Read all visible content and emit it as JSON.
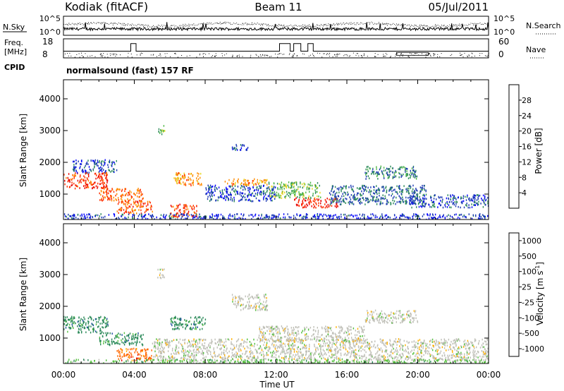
{
  "header": {
    "station": "Kodiak (fitACF)",
    "beam": "Beam 11",
    "date": "05/Jul/2011"
  },
  "noise_panel": {
    "left_label": "N.Sky",
    "right_label": "N.Search",
    "left_ticks": [
      "10^5",
      "10^0"
    ],
    "right_ticks": [
      "10^5",
      "10^0"
    ]
  },
  "freq_panel": {
    "left_label_1": "Freq.",
    "left_label_2": "[MHz]",
    "right_label": "Nave",
    "left_ticks": [
      "18",
      "8"
    ],
    "right_ticks": [
      "60",
      "0"
    ],
    "freq_range": [
      8,
      18
    ],
    "nave_range": [
      0,
      60
    ],
    "freq_base": 11.5,
    "freq_steps": [
      {
        "start": 3.8,
        "end": 4.1,
        "value": 15.5
      },
      {
        "start": 12.2,
        "end": 12.8,
        "value": 15.5
      },
      {
        "start": 13.0,
        "end": 13.4,
        "value": 15.5
      },
      {
        "start": 13.8,
        "end": 14.1,
        "value": 15.5
      }
    ],
    "nave_box": {
      "start": 18.8,
      "end": 20.6,
      "value": 17
    }
  },
  "cpid": {
    "label": "CPID",
    "text": "normalsound (fast) 157 RF"
  },
  "chart_data": [
    {
      "type": "heatmap",
      "name": "power",
      "ylabel": "Slant Range [km]",
      "xlabel": "Time UT",
      "x_ticks": [
        "00:00",
        "04:00",
        "08:00",
        "12:00",
        "16:00",
        "20:00",
        "00:00"
      ],
      "xlim": [
        0,
        24
      ],
      "ylim": [
        200,
        4600
      ],
      "y_ticks": [
        1000,
        2000,
        3000,
        4000
      ],
      "colorbar": {
        "label": "Power [dB]",
        "ticks": [
          4,
          8,
          12,
          16,
          20,
          24,
          28
        ],
        "range": [
          0,
          32
        ],
        "colors": [
          "#0000ff",
          "#1e3cb4",
          "#2c8a5a",
          "#4fb848",
          "#e8d820",
          "#ff8c00",
          "#ff3000",
          "#e80000"
        ]
      },
      "echo_regions": [
        {
          "t0": 0.0,
          "t1": 2.5,
          "r0": 1200,
          "r1": 1700,
          "value": 26
        },
        {
          "t0": 2.0,
          "t1": 4.5,
          "r0": 800,
          "r1": 1200,
          "value": 24
        },
        {
          "t0": 3.0,
          "t1": 5.0,
          "r0": 400,
          "r1": 800,
          "value": 25
        },
        {
          "t0": 6.0,
          "t1": 7.5,
          "r0": 300,
          "r1": 700,
          "value": 26
        },
        {
          "t0": 6.2,
          "t1": 7.8,
          "r0": 1300,
          "r1": 1700,
          "value": 22
        },
        {
          "t0": 0.5,
          "t1": 3.0,
          "r0": 1700,
          "r1": 2100,
          "value": 6
        },
        {
          "t0": 8.0,
          "t1": 12.0,
          "r0": 800,
          "r1": 1300,
          "value": 6
        },
        {
          "t0": 11.5,
          "t1": 14.5,
          "r0": 900,
          "r1": 1400,
          "value": 14
        },
        {
          "t0": 13.0,
          "t1": 15.5,
          "r0": 600,
          "r1": 900,
          "value": 28
        },
        {
          "t0": 15.0,
          "t1": 20.5,
          "r0": 700,
          "r1": 1300,
          "value": 8
        },
        {
          "t0": 17.0,
          "t1": 20.0,
          "r0": 1500,
          "r1": 1900,
          "value": 10
        },
        {
          "t0": 19.5,
          "t1": 24.0,
          "r0": 600,
          "r1": 1000,
          "value": 6
        },
        {
          "t0": 0.0,
          "t1": 24.0,
          "r0": 200,
          "r1": 400,
          "value": 5
        },
        {
          "t0": 9.0,
          "t1": 11.5,
          "r0": 1300,
          "r1": 1500,
          "value": 22
        },
        {
          "t0": 5.3,
          "t1": 5.7,
          "r0": 2900,
          "r1": 3200,
          "value": 14
        },
        {
          "t0": 9.5,
          "t1": 10.5,
          "r0": 2400,
          "r1": 2600,
          "value": 6
        }
      ]
    },
    {
      "type": "heatmap",
      "name": "velocity",
      "ylabel": "Slant Range [km]",
      "xlabel": "Time UT",
      "x_ticks": [
        "00:00",
        "04:00",
        "08:00",
        "12:00",
        "16:00",
        "20:00",
        "00:00"
      ],
      "xlim": [
        0,
        24
      ],
      "ylim": [
        200,
        4600
      ],
      "y_ticks": [
        1000,
        2000,
        3000,
        4000
      ],
      "colorbar": {
        "label": "Velocity [m s^-1]",
        "ticks": [
          "1000",
          "500",
          "100",
          "25",
          "-25",
          "-100",
          "-500",
          "-1000"
        ],
        "colors": [
          "#0000ff",
          "#2050a0",
          "#2c8a5a",
          "#55c040",
          "#c0c0b8",
          "#ffb000",
          "#ff6800",
          "#e80000"
        ]
      },
      "echo_regions": [
        {
          "t0": 0.0,
          "t1": 2.5,
          "r0": 1200,
          "r1": 1700,
          "value": 2
        },
        {
          "t0": 2.0,
          "t1": 4.5,
          "r0": 800,
          "r1": 1200,
          "value": 2
        },
        {
          "t0": 3.0,
          "t1": 5.0,
          "r0": 300,
          "r1": 700,
          "value": 6
        },
        {
          "t0": 5.0,
          "t1": 24.0,
          "r0": 300,
          "r1": 1000,
          "value": 4
        },
        {
          "t0": 11.0,
          "t1": 17.0,
          "r0": 900,
          "r1": 1400,
          "value": 4
        },
        {
          "t0": 17.0,
          "t1": 20.0,
          "r0": 1500,
          "r1": 1900,
          "value": 4
        },
        {
          "t0": 0.0,
          "t1": 24.0,
          "r0": 200,
          "r1": 350,
          "value": 3
        },
        {
          "t0": 6.0,
          "t1": 8.0,
          "r0": 1300,
          "r1": 1700,
          "value": 2
        },
        {
          "t0": 5.3,
          "t1": 5.7,
          "r0": 2900,
          "r1": 3200,
          "value": 4
        },
        {
          "t0": 9.5,
          "t1": 11.5,
          "r0": 1900,
          "r1": 2400,
          "value": 4
        }
      ]
    }
  ]
}
